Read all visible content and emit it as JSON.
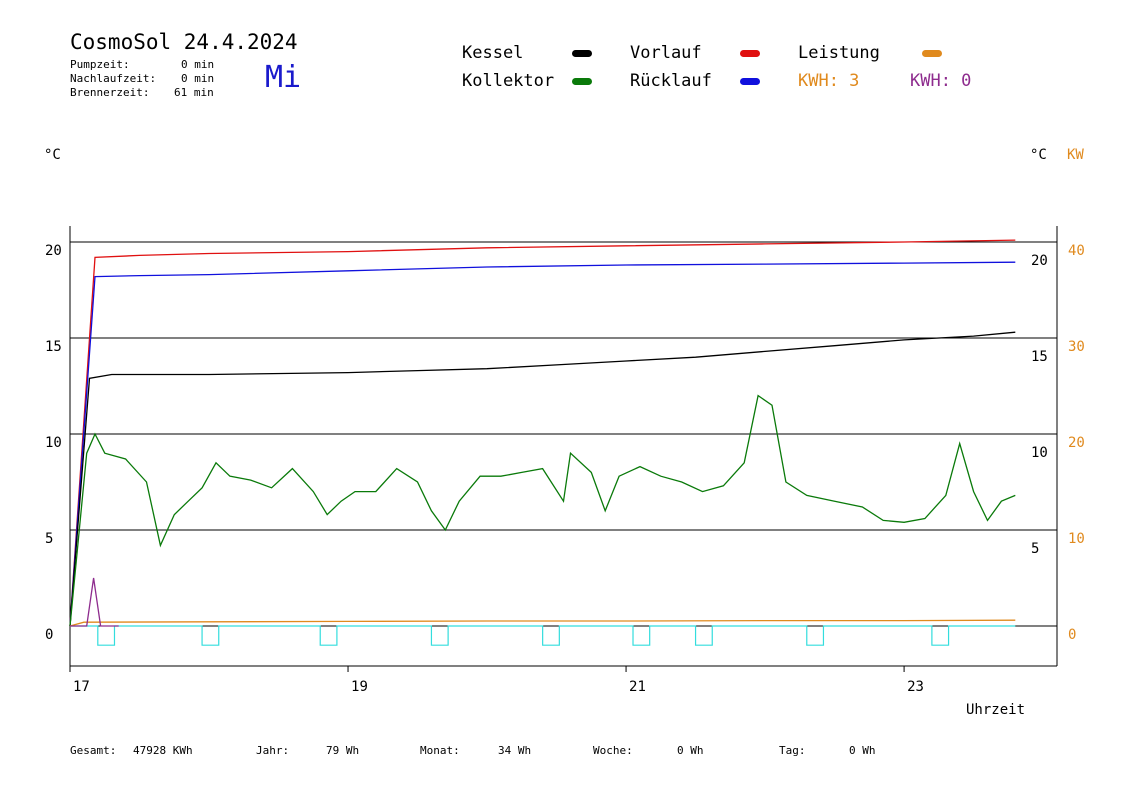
{
  "header": {
    "title": "CosmoSol 24.4.2024",
    "weekday": "Mi",
    "pump_label": "Pumpzeit:",
    "pump_value": "0 min",
    "nach_label": "Nachlaufzeit:",
    "nach_value": "0 min",
    "brenner_label": "Brennerzeit:",
    "brenner_value": "61 min"
  },
  "legend": {
    "kessel": "Kessel",
    "kollektor": "Kollektor",
    "vorlauf": "Vorlauf",
    "ruecklauf": "Rücklauf",
    "leistung": "Leistung",
    "kwh1": "KWH: 3",
    "kwh2": "KWH: 0"
  },
  "colors": {
    "kessel": "#000000",
    "kollektor": "#0a7a0a",
    "vorlauf": "#e01010",
    "ruecklauf": "#1010dd",
    "leistung": "#e08a1e",
    "kwh2": "#8e2c8e",
    "pump": "#33dddd"
  },
  "axes": {
    "left_unit": "°C",
    "right_unit": "°C",
    "right_unit2": "KW",
    "x_label": "Uhrzeit"
  },
  "chart_data": {
    "type": "line",
    "x_range": [
      17,
      24.1
    ],
    "y_range": [
      -2,
      21
    ],
    "x_ticks": [
      17,
      19,
      21,
      23
    ],
    "y_ticks_left": [
      0,
      5,
      10,
      15,
      20
    ],
    "y_ticks_right_c": [
      5,
      10,
      15,
      20
    ],
    "y_ticks_right_kw": [
      0,
      10,
      20,
      30,
      40
    ],
    "series": [
      {
        "name": "Vorlauf",
        "color": "#e01010",
        "points": [
          [
            17.0,
            0
          ],
          [
            17.18,
            19.2
          ],
          [
            17.5,
            19.3
          ],
          [
            18.0,
            19.4
          ],
          [
            19.0,
            19.5
          ],
          [
            20.0,
            19.7
          ],
          [
            21.0,
            19.8
          ],
          [
            22.0,
            19.9
          ],
          [
            23.0,
            20.0
          ],
          [
            23.8,
            20.1
          ]
        ]
      },
      {
        "name": "Rücklauf",
        "color": "#1010dd",
        "points": [
          [
            17.0,
            0
          ],
          [
            17.18,
            18.2
          ],
          [
            17.5,
            18.25
          ],
          [
            18.0,
            18.3
          ],
          [
            19.0,
            18.5
          ],
          [
            20.0,
            18.7
          ],
          [
            21.0,
            18.8
          ],
          [
            22.0,
            18.85
          ],
          [
            23.0,
            18.9
          ],
          [
            23.8,
            18.95
          ]
        ]
      },
      {
        "name": "Kessel",
        "color": "#000000",
        "points": [
          [
            17.0,
            0
          ],
          [
            17.14,
            12.9
          ],
          [
            17.3,
            13.1
          ],
          [
            18.0,
            13.1
          ],
          [
            19.0,
            13.2
          ],
          [
            19.5,
            13.3
          ],
          [
            20.0,
            13.4
          ],
          [
            20.5,
            13.6
          ],
          [
            21.0,
            13.8
          ],
          [
            21.5,
            14.0
          ],
          [
            22.0,
            14.3
          ],
          [
            22.5,
            14.6
          ],
          [
            23.0,
            14.9
          ],
          [
            23.5,
            15.1
          ],
          [
            23.8,
            15.3
          ]
        ]
      },
      {
        "name": "Kollektor",
        "color": "#0a7a0a",
        "points": [
          [
            17.0,
            0
          ],
          [
            17.12,
            9.0
          ],
          [
            17.18,
            10.0
          ],
          [
            17.25,
            9.0
          ],
          [
            17.4,
            8.7
          ],
          [
            17.55,
            7.5
          ],
          [
            17.65,
            4.2
          ],
          [
            17.75,
            5.8
          ],
          [
            17.85,
            6.5
          ],
          [
            17.95,
            7.2
          ],
          [
            18.05,
            8.5
          ],
          [
            18.15,
            7.8
          ],
          [
            18.3,
            7.6
          ],
          [
            18.45,
            7.2
          ],
          [
            18.6,
            8.2
          ],
          [
            18.75,
            7.0
          ],
          [
            18.85,
            5.8
          ],
          [
            18.95,
            6.5
          ],
          [
            19.05,
            7.0
          ],
          [
            19.2,
            7.0
          ],
          [
            19.35,
            8.2
          ],
          [
            19.5,
            7.5
          ],
          [
            19.6,
            6.0
          ],
          [
            19.7,
            5.0
          ],
          [
            19.8,
            6.5
          ],
          [
            19.95,
            7.8
          ],
          [
            20.1,
            7.8
          ],
          [
            20.25,
            8.0
          ],
          [
            20.4,
            8.2
          ],
          [
            20.55,
            6.5
          ],
          [
            20.6,
            9.0
          ],
          [
            20.75,
            8.0
          ],
          [
            20.85,
            6.0
          ],
          [
            20.95,
            7.8
          ],
          [
            21.1,
            8.3
          ],
          [
            21.25,
            7.8
          ],
          [
            21.4,
            7.5
          ],
          [
            21.55,
            7.0
          ],
          [
            21.7,
            7.3
          ],
          [
            21.85,
            8.5
          ],
          [
            21.95,
            12.0
          ],
          [
            22.05,
            11.5
          ],
          [
            22.15,
            7.5
          ],
          [
            22.3,
            6.8
          ],
          [
            22.5,
            6.5
          ],
          [
            22.7,
            6.2
          ],
          [
            22.85,
            5.5
          ],
          [
            23.0,
            5.4
          ],
          [
            23.15,
            5.6
          ],
          [
            23.3,
            6.8
          ],
          [
            23.4,
            9.5
          ],
          [
            23.5,
            7.0
          ],
          [
            23.6,
            5.5
          ],
          [
            23.7,
            6.5
          ],
          [
            23.8,
            6.8
          ]
        ]
      },
      {
        "name": "Leistung",
        "color": "#e08a1e",
        "points": [
          [
            17.0,
            0
          ],
          [
            17.1,
            0.2
          ],
          [
            18.0,
            0.22
          ],
          [
            19.0,
            0.24
          ],
          [
            20.0,
            0.26
          ],
          [
            21.0,
            0.26
          ],
          [
            22.0,
            0.28
          ],
          [
            23.0,
            0.28
          ],
          [
            23.8,
            0.3
          ]
        ]
      },
      {
        "name": "KWH 0",
        "color": "#8e2c8e",
        "points": [
          [
            17.0,
            0
          ],
          [
            17.12,
            0
          ],
          [
            17.17,
            2.5
          ],
          [
            17.22,
            0
          ],
          [
            17.35,
            0
          ]
        ]
      }
    ],
    "pump_pulses": [
      17.2,
      17.95,
      18.8,
      19.6,
      20.4,
      21.05,
      21.5,
      22.3,
      23.2
    ],
    "pump_pulse_width": 0.12,
    "pump_pulse_depth": 1.0
  },
  "footer": {
    "gesamt_label": "Gesamt:",
    "gesamt_value": "47928 KWh",
    "jahr_label": "Jahr:",
    "jahr_value": "79 Wh",
    "monat_label": "Monat:",
    "monat_value": "34 Wh",
    "woche_label": "Woche:",
    "woche_value": "0 Wh",
    "tag_label": "Tag:",
    "tag_value": "0 Wh"
  }
}
